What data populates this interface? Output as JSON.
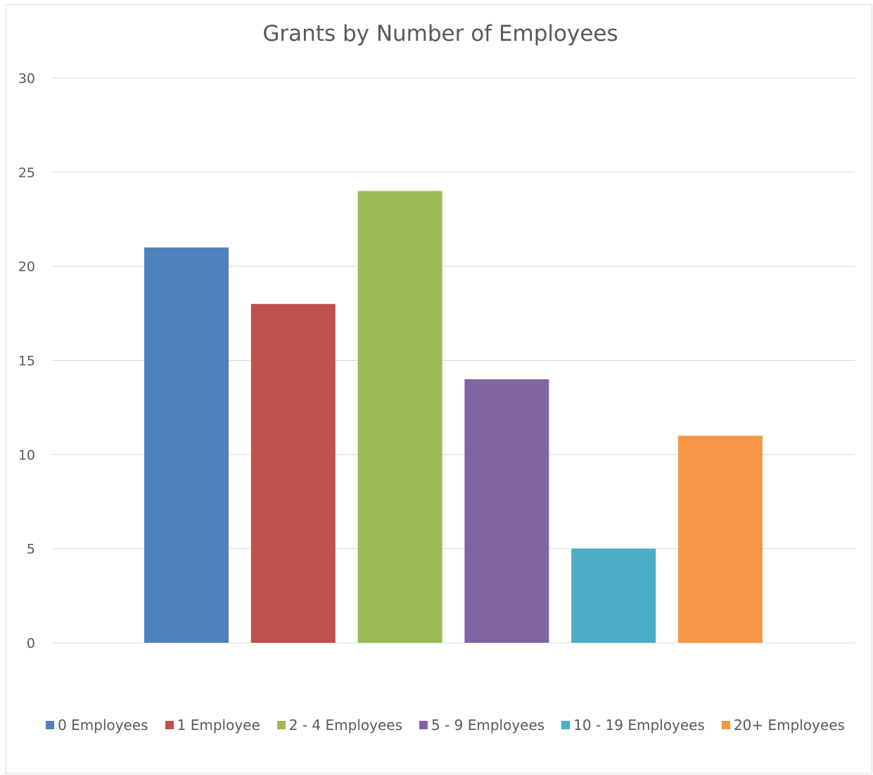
{
  "chart_data": {
    "type": "bar",
    "title": "Grants by Number of Employees",
    "categories": [
      "0 Employees",
      "1 Employee",
      "2 - 4 Employees",
      "5 - 9 Employees",
      "10 - 19 Employees",
      "20+ Employees"
    ],
    "values": [
      21,
      18,
      24,
      14,
      5,
      11
    ],
    "colors": [
      "#4f81bd",
      "#c0504d",
      "#9bbb59",
      "#8064a2",
      "#4bacc6",
      "#f79646"
    ],
    "ylim": [
      0,
      30
    ],
    "yticks": [
      0,
      5,
      10,
      15,
      20,
      25,
      30
    ],
    "grid": true,
    "legend_position": "bottom"
  }
}
